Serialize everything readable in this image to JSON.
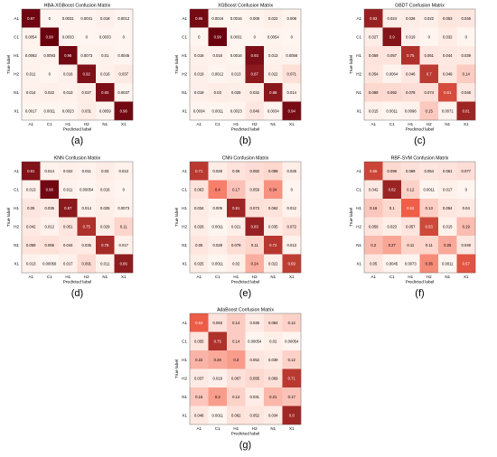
{
  "figure": {
    "label_color": "#000000",
    "colormap": {
      "low": "#fff5f0",
      "mid": "#f4624a",
      "high": "#67000d"
    }
  },
  "chart_data": [
    {
      "type": "heatmap",
      "panel_label": "(a)",
      "title": "HBA-XGBoost Confusion Matrix",
      "xlabel": "Predicted label",
      "ylabel": "True label",
      "categories": [
        "A1",
        "C1",
        "H1",
        "H2",
        "N1",
        "X1"
      ],
      "values": [
        [
          "0.97",
          "0",
          "0.0031",
          "0.0031",
          "0.016",
          "0.0012"
        ],
        [
          "0.0054",
          "0.99",
          "0.0033",
          "0",
          "0.0033",
          "0"
        ],
        [
          "0.0062",
          "0.0093",
          "0.96",
          "0.0073",
          "0.01",
          "0.0045"
        ],
        [
          "0.011",
          "0",
          "0.016",
          "0.92",
          "0.016",
          "0.037"
        ],
        [
          "0.014",
          "0.022",
          "0.013",
          "0.027",
          "0.93",
          "0.0037"
        ],
        [
          "0.0017",
          "0.0011",
          "0.0023",
          "0.031",
          "0.0059",
          "0.96"
        ]
      ]
    },
    {
      "type": "heatmap",
      "panel_label": "(b)",
      "title": "XGBoost Confusion Matrix",
      "xlabel": "Predicted label",
      "ylabel": "True label",
      "categories": [
        "A1",
        "C1",
        "H1",
        "H2",
        "N1",
        "X1"
      ],
      "values": [
        [
          "0.95",
          "0.0016",
          "0.0016",
          "0.008",
          "0.022",
          "0.008"
        ],
        [
          "0",
          "0.99",
          "0.0031",
          "0",
          "0.0054",
          "0"
        ],
        [
          "0.016",
          "0.016",
          "0.0016",
          "0.93",
          "0.013",
          "0.0056"
        ],
        [
          "0.019",
          "0.0012",
          "0.013",
          "0.87",
          "0.022",
          "0.071"
        ],
        [
          "0.019",
          "0.03",
          "0.025",
          "0.032",
          "0.88",
          "0.014"
        ],
        [
          "0.0034",
          "0.0011",
          "0.0023",
          "0.046",
          "0.0034",
          "0.94"
        ]
      ]
    },
    {
      "type": "heatmap",
      "panel_label": "(c)",
      "title": "GBDT Confusion Matrix",
      "xlabel": "Predicted label",
      "ylabel": "True label",
      "categories": [
        "A1",
        "C1",
        "H1",
        "H2",
        "N1",
        "X1"
      ],
      "values": [
        [
          "0.83",
          "0.024",
          "0.026",
          "0.022",
          "0.053",
          "0.046"
        ],
        [
          "0.027",
          "0.9",
          "0.019",
          "0",
          "0.032",
          "0"
        ],
        [
          "0.059",
          "0.057",
          "0.75",
          "0.051",
          "0.044",
          "0.039"
        ],
        [
          "0.054",
          "0.0064",
          "0.046",
          "0.7",
          "0.049",
          "0.14"
        ],
        [
          "0.099",
          "0.092",
          "0.078",
          "0.074",
          "0.61",
          "0.046"
        ],
        [
          "0.015",
          "0.0011",
          "0.0096",
          "0.15",
          "0.0071",
          "0.81"
        ]
      ]
    },
    {
      "type": "heatmap",
      "panel_label": "(d)",
      "title": "KNN Confusion Matrix",
      "xlabel": "Predicted label",
      "ylabel": "True label",
      "categories": [
        "A1",
        "C1",
        "H1",
        "H2",
        "N1",
        "X1"
      ],
      "values": [
        [
          "0.91",
          "0.014",
          "0.022",
          "0.011",
          "0.03",
          "0.013"
        ],
        [
          "0.013",
          "0.96",
          "0.011",
          "0.00054",
          "0.016",
          "0"
        ],
        [
          "0.05",
          "0.036",
          "0.87",
          "0.014",
          "0.025",
          "0.0073"
        ],
        [
          "0.042",
          "0.012",
          "0.051",
          "0.75",
          "0.029",
          "0.11"
        ],
        [
          "0.059",
          "0.065",
          "0.044",
          "0.035",
          "0.78",
          "0.017"
        ],
        [
          "0.013",
          "0.00056",
          "0.017",
          "0.091",
          "0.011",
          "0.86"
        ]
      ]
    },
    {
      "type": "heatmap",
      "panel_label": "(e)",
      "title": "CNN Confusion Matrix",
      "xlabel": "Predicted label",
      "ylabel": "True label",
      "categories": [
        "A1",
        "C1",
        "H1",
        "H2",
        "N1",
        "X1"
      ],
      "values": [
        [
          "0.71",
          "0.026",
          "0.06",
          "0.082",
          "0.099",
          "0.025"
        ],
        [
          "0.063",
          "0.4",
          "0.17",
          "0.059",
          "0.34",
          "0"
        ],
        [
          "0.034",
          "0.009",
          "0.81",
          "0.073",
          "0.062",
          "0.012"
        ],
        [
          "0.026",
          "0.0011",
          "0.021",
          "0.83",
          "0.035",
          "0.072"
        ],
        [
          "0.05",
          "0.028",
          "0.079",
          "0.11",
          "0.72",
          "0.013"
        ],
        [
          "0.025",
          "0.0011",
          "0.02",
          "0.24",
          "0.022",
          "0.69"
        ]
      ]
    },
    {
      "type": "heatmap",
      "panel_label": "(f)",
      "title": "RBF-SVM Confusion Matrix",
      "xlabel": "Predicted label",
      "ylabel": "True label",
      "categories": [
        "A1",
        "C1",
        "H1",
        "H2",
        "N1",
        "X1"
      ],
      "values": [
        [
          "0.65",
          "0.096",
          "0.069",
          "0.054",
          "0.061",
          "0.077"
        ],
        [
          "0.042",
          "0.82",
          "0.12",
          "0.0011",
          "0.017",
          "0"
        ],
        [
          "0.16",
          "0.1",
          "0.52",
          "0.13",
          "0.054",
          "0.04"
        ],
        [
          "0.059",
          "0.023",
          "0.057",
          "0.63",
          "0.015",
          "0.19"
        ],
        [
          "0.2",
          "0.27",
          "0.11",
          "0.11",
          "0.26",
          "0.049"
        ],
        [
          "0.05",
          "0.0045",
          "0.0073",
          "0.36",
          "0.0011",
          "0.57"
        ]
      ]
    },
    {
      "type": "heatmap",
      "panel_label": "(g)",
      "title": "AdaBoost Confusion Matrix",
      "xlabel": "Predicted label",
      "ylabel": "True label",
      "categories": [
        "A1",
        "C1",
        "H1",
        "H2",
        "N1",
        "X1"
      ],
      "values": [
        [
          "0.53",
          "0.063",
          "0.14",
          "0.036",
          "0.084",
          "0.12"
        ],
        [
          "0.055",
          "0.75",
          "0.14",
          "0.00054",
          "0.02",
          "0.00054"
        ],
        [
          "0.22",
          "0.26",
          "0.3",
          "0.052",
          "0.039",
          "0.12"
        ],
        [
          "0.037",
          "0.019",
          "0.067",
          "0.095",
          "0.069",
          "0.71"
        ],
        [
          "0.16",
          "0.3",
          "0.12",
          "0.031",
          "0.21",
          "0.17"
        ],
        [
          "0.046",
          "0.0011",
          "0.062",
          "0.052",
          "0.034",
          "0.8"
        ]
      ]
    }
  ]
}
